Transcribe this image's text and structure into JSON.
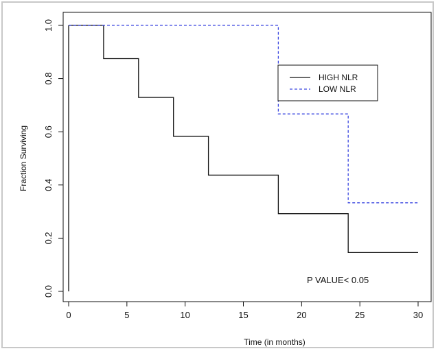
{
  "chart_data": {
    "type": "line",
    "subtype": "step",
    "title": "",
    "xlabel": "Time  (in  months)",
    "ylabel": "Fraction Surviving",
    "xlim": [
      0,
      30
    ],
    "ylim": [
      0,
      1
    ],
    "x_ticks": [
      "0",
      "5",
      "10",
      "15",
      "20",
      "25",
      "30"
    ],
    "y_ticks": [
      "0.0",
      "0.2",
      "0.4",
      "0.6",
      "0.8",
      "1.0"
    ],
    "grid": false,
    "legend_position": "top-right",
    "annotation": "P   VALUE< 0.05",
    "series": [
      {
        "name": "HIGH NLR",
        "color": "#111111",
        "line_style": "solid",
        "x": [
          0,
          3,
          6,
          9,
          12,
          18,
          24,
          30
        ],
        "y": [
          1.0,
          0.875,
          0.729,
          0.583,
          0.437,
          0.292,
          0.146,
          0.146
        ]
      },
      {
        "name": "LOW NLR",
        "color": "#3a46e0",
        "line_style": "dashed",
        "x": [
          0,
          18,
          24,
          30
        ],
        "y": [
          1.0,
          0.667,
          0.333,
          0.333
        ]
      }
    ]
  }
}
